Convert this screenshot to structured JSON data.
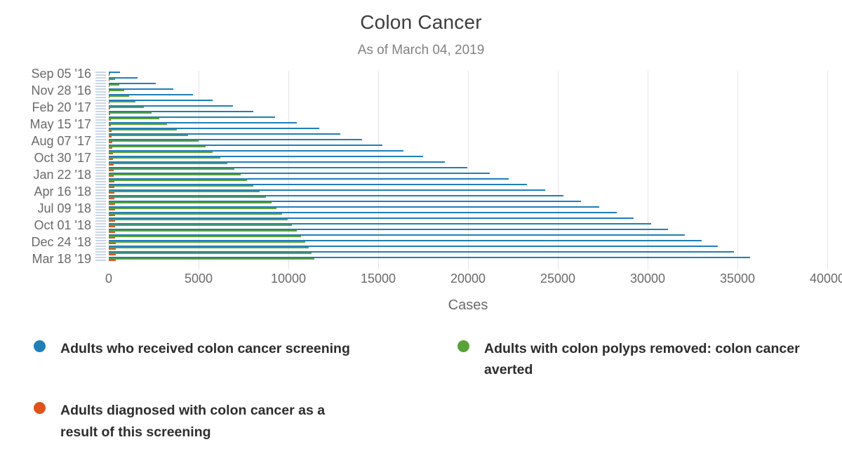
{
  "chart_data": {
    "type": "bar",
    "orientation": "horizontal",
    "title": "Colon Cancer",
    "subtitle": "As of March 04, 2019",
    "xlabel": "Cases",
    "xlim": [
      0,
      40000
    ],
    "xticks": [
      0,
      5000,
      10000,
      15000,
      20000,
      25000,
      30000,
      35000,
      40000
    ],
    "grid": true,
    "legend_position": "bottom",
    "ytick_label_every": 3,
    "categories": [
      "Sep 05 '16",
      "Oct 03 '16",
      "Oct 31 '16",
      "Nov 28 '16",
      "Dec 26 '16",
      "Jan 23 '17",
      "Feb 20 '17",
      "Mar 20 '17",
      "Apr 17 '17",
      "May 15 '17",
      "Jun 12 '17",
      "Jul 10 '17",
      "Aug 07 '17",
      "Sep 04 '17",
      "Oct 02 '17",
      "Oct 30 '17",
      "Nov 27 '17",
      "Dec 25 '17",
      "Jan 22 '18",
      "Feb 19 '18",
      "Mar 19 '18",
      "Apr 16 '18",
      "May 14 '18",
      "Jun 11 '18",
      "Jul 09 '18",
      "Aug 06 '18",
      "Sep 03 '18",
      "Oct 01 '18",
      "Oct 29 '18",
      "Nov 26 '18",
      "Dec 24 '18",
      "Jan 21 '19",
      "Feb 18 '19",
      "Mar 18 '19"
    ],
    "series": [
      {
        "name": "Adults who received colon cancer screening",
        "color": "#1f7fb8",
        "values": [
          625,
          1600,
          2600,
          3600,
          4700,
          5800,
          6900,
          8050,
          9250,
          10480,
          11700,
          12900,
          14100,
          15250,
          16400,
          17500,
          18700,
          19950,
          21200,
          22250,
          23300,
          24300,
          25300,
          26300,
          27300,
          28270,
          29230,
          30200,
          31130,
          32070,
          33000,
          33900,
          34800,
          35700
        ]
      },
      {
        "name": "Adults with colon polyps removed: colon cancer averted",
        "color": "#58a237",
        "values": [
          60,
          350,
          600,
          850,
          1150,
          1500,
          1950,
          2400,
          2800,
          3250,
          3800,
          4400,
          5000,
          5400,
          5800,
          6200,
          6600,
          7000,
          7350,
          7700,
          8050,
          8400,
          8750,
          9050,
          9350,
          9650,
          9950,
          10200,
          10450,
          10700,
          10950,
          11150,
          11300,
          11450
        ]
      },
      {
        "name": "Adults diagnosed with colon cancer as a result of this screening",
        "color": "#e0521c",
        "values": [
          5,
          10,
          18,
          28,
          40,
          55,
          70,
          90,
          110,
          130,
          150,
          170,
          190,
          210,
          228,
          245,
          260,
          275,
          288,
          300,
          310,
          320,
          328,
          336,
          343,
          350,
          356,
          361,
          366,
          370,
          374,
          377,
          379,
          381
        ]
      }
    ],
    "legend_order": [
      0,
      1,
      2
    ],
    "style": {
      "gridline_color": "#e4e4e4",
      "tick_dash_color": "#c9d6e8",
      "axis_text_color": "#6a6a6a",
      "title_color": "#3d3d3d",
      "subtitle_color": "#828282",
      "legend_text_color": "#2d2d2d",
      "background": "#ffffff"
    }
  }
}
